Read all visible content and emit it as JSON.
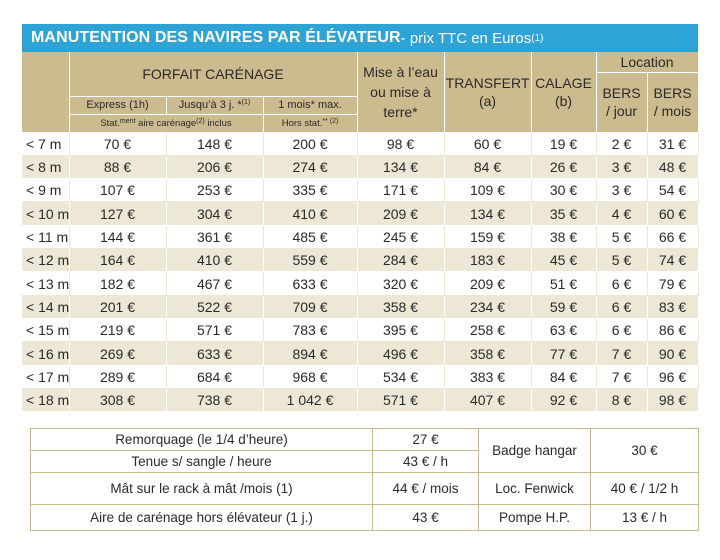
{
  "title": {
    "bold": "MANUTENTION DES NAVIRES PAR ÉLÉVATEUR",
    "sub": " - prix TTC en Euros ",
    "note": "(1)"
  },
  "headers": {
    "forfait": "FORFAIT CARÉNAGE",
    "express": "Express (1h)",
    "jusqua": "Jusqu’à 3 j. *",
    "jusqua_sup": "(1)",
    "mois": "1 mois* max.",
    "stat_pre": "Stat.",
    "stat_sup": "ment",
    "stat_text": " aire carénage",
    "stat_sup2": "(2)",
    "stat_end": " inclus",
    "hors": "Hors stat.",
    "hors_sup": "** (2)",
    "mise": "Mise à l’eau ou mise à terre*",
    "transfert": "TRANSFERT",
    "transfert_note": "(a)",
    "calage": "CALAGE",
    "calage_note": "(b)",
    "location": "Location",
    "bers_jour_1": "BERS",
    "bers_jour_2": "/ jour",
    "bers_mois_1": "BERS",
    "bers_mois_2": "/ mois"
  },
  "rows": [
    {
      "len": "< 7  m",
      "c1": "70 €",
      "c2": "148 €",
      "c3": "200 €",
      "mise": "98 €",
      "transfert": "60 €",
      "calage": "19 €",
      "jour": "2 €",
      "mois": "31 €"
    },
    {
      "len": "< 8  m",
      "c1": "88 €",
      "c2": "206 €",
      "c3": "274 €",
      "mise": "134 €",
      "transfert": "84 €",
      "calage": "26 €",
      "jour": "3 €",
      "mois": "48 €"
    },
    {
      "len": "< 9  m",
      "c1": "107 €",
      "c2": "253 €",
      "c3": "335 €",
      "mise": "171 €",
      "transfert": "109 €",
      "calage": "30 €",
      "jour": "3 €",
      "mois": "54 €"
    },
    {
      "len": "< 10 m",
      "c1": "127 €",
      "c2": "304 €",
      "c3": "410 €",
      "mise": "209 €",
      "transfert": "134 €",
      "calage": "35 €",
      "jour": "4 €",
      "mois": "60 €"
    },
    {
      "len": "< 11 m",
      "c1": "144 €",
      "c2": "361 €",
      "c3": "485 €",
      "mise": "245 €",
      "transfert": "159 €",
      "calage": "38 €",
      "jour": "5 €",
      "mois": "66 €"
    },
    {
      "len": "< 12 m",
      "c1": "164 €",
      "c2": "410 €",
      "c3": "559 €",
      "mise": "284 €",
      "transfert": "183 €",
      "calage": "45 €",
      "jour": "5 €",
      "mois": "74 €"
    },
    {
      "len": "< 13 m",
      "c1": "182 €",
      "c2": "467 €",
      "c3": "633 €",
      "mise": "320 €",
      "transfert": "209 €",
      "calage": "51 €",
      "jour": "6 €",
      "mois": "79 €"
    },
    {
      "len": "< 14 m",
      "c1": "201 €",
      "c2": "522 €",
      "c3": "709 €",
      "mise": "358 €",
      "transfert": "234 €",
      "calage": "59 €",
      "jour": "6 €",
      "mois": "83 €"
    },
    {
      "len": "< 15 m",
      "c1": "219 €",
      "c2": "571 €",
      "c3": "783 €",
      "mise": "395 €",
      "transfert": "258 €",
      "calage": "63 €",
      "jour": "6 €",
      "mois": "86 €"
    },
    {
      "len": "< 16 m",
      "c1": "269 €",
      "c2": "633 €",
      "c3": "894 €",
      "mise": "496 €",
      "transfert": "358 €",
      "calage": "77 €",
      "jour": "7 €",
      "mois": "90 €"
    },
    {
      "len": "< 17 m",
      "c1": "289 €",
      "c2": "684 €",
      "c3": "968 €",
      "mise": "534 €",
      "transfert": "383 €",
      "calage": "84 €",
      "jour": "7 €",
      "mois": "96 €"
    },
    {
      "len": "< 18 m",
      "c1": "308 €",
      "c2": "738 €",
      "c3": "1 042 €",
      "mise": "571 €",
      "transfert": "407 €",
      "calage": "92 €",
      "jour": "8 €",
      "mois": "98 €"
    }
  ],
  "extras": {
    "remorquage_label": "Remorquage (le 1/4 d’heure)",
    "remorquage_value": "27 €",
    "tenue_label": "Tenue s/ sangle / heure",
    "tenue_value": "43 € / h",
    "badge_label": "Badge hangar",
    "badge_value": "30 €",
    "mat_label": "Mât sur le rack à mât /mois (1)",
    "mat_value": "44 € / mois",
    "fenwick_label": "Loc. Fenwick",
    "fenwick_value": "40 € / 1/2 h",
    "aire_label": "Aire de carénage hors élévateur (1 j.)",
    "aire_value": "43 €",
    "pompe_label": "Pompe H.P.",
    "pompe_value": "13 € / h"
  },
  "colors": {
    "title_bg": "#2ea3d6",
    "header_bg": "#ccbb8e",
    "stripe_bg": "#ede7d5"
  }
}
